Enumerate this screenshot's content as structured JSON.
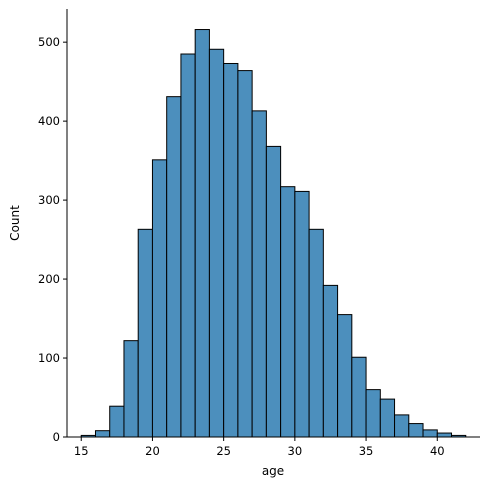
{
  "chart_data": {
    "type": "bar",
    "xlabel": "age",
    "ylabel": "Count",
    "bar_color": "#4c8fbd",
    "edge_color": "#000000",
    "bin_edges": [
      15,
      16,
      17,
      18,
      19,
      20,
      21,
      22,
      23,
      24,
      25,
      26,
      27,
      28,
      29,
      30,
      31,
      32,
      33,
      34,
      35,
      36,
      37,
      38,
      39,
      40,
      41,
      42
    ],
    "values": [
      2,
      8,
      39,
      122,
      263,
      351,
      431,
      485,
      516,
      491,
      473,
      464,
      413,
      368,
      317,
      311,
      263,
      192,
      155,
      101,
      60,
      48,
      28,
      17,
      9,
      5,
      2
    ],
    "xlim": [
      14,
      43
    ],
    "ylim": [
      0,
      542
    ],
    "xticks": [
      15,
      20,
      25,
      30,
      35,
      40
    ],
    "yticks": [
      0,
      100,
      200,
      300,
      400,
      500
    ],
    "grid": false,
    "legend": "none"
  }
}
